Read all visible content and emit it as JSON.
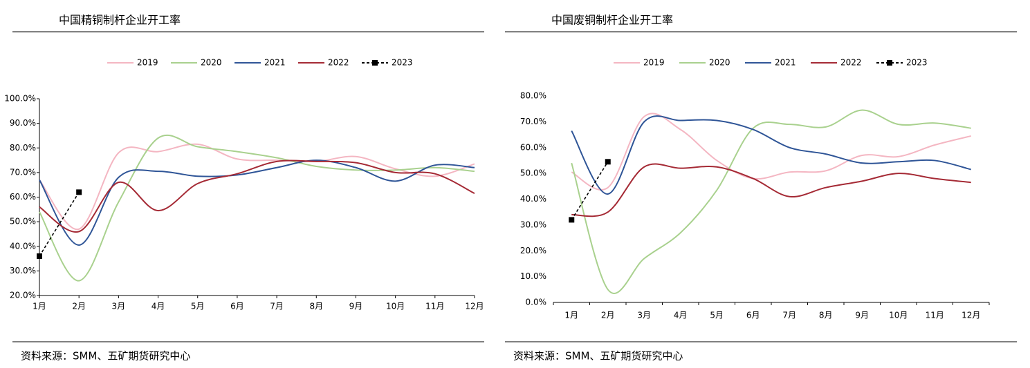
{
  "chart_data": [
    {
      "type": "line",
      "title": "中国精铜制杆企业开工率",
      "source": "资料来源：SMM、五矿期货研究中心",
      "categories": [
        "1月",
        "2月",
        "3月",
        "4月",
        "5月",
        "6月",
        "7月",
        "8月",
        "9月",
        "10月",
        "11月",
        "12月"
      ],
      "ylim": [
        20,
        100
      ],
      "yticks": [
        {
          "value": 20,
          "label": "20.0%"
        },
        {
          "value": 30,
          "label": "30.0%"
        },
        {
          "value": 40,
          "label": "40.0%"
        },
        {
          "value": 50,
          "label": "50.0%"
        },
        {
          "value": 60,
          "label": "60.0%"
        },
        {
          "value": 70,
          "label": "70.0%"
        },
        {
          "value": 80,
          "label": "80.0%"
        },
        {
          "value": 90,
          "label": "90.0%"
        },
        {
          "value": 100,
          "label": "100.0%"
        }
      ],
      "legend": "top",
      "series": [
        {
          "name": "2019",
          "color": "#f4b6c2",
          "values": [
            67,
            47,
            78,
            78.5,
            81.5,
            75.5,
            75,
            74.5,
            76.5,
            71.5,
            68.5,
            73.5
          ]
        },
        {
          "name": "2020",
          "color": "#a9d18e",
          "values": [
            54,
            26,
            58,
            84,
            80.5,
            78.5,
            76,
            72.5,
            71,
            71,
            72,
            70.5
          ]
        },
        {
          "name": "2021",
          "color": "#2f5597",
          "values": [
            67,
            40.5,
            68,
            70.5,
            68.5,
            69,
            72,
            75,
            72,
            66.5,
            73,
            72
          ]
        },
        {
          "name": "2022",
          "color": "#a52a35",
          "values": [
            56,
            46,
            66,
            54.5,
            65.5,
            69.5,
            74.5,
            74.5,
            74,
            70,
            69.5,
            61.5
          ]
        },
        {
          "name": "2023",
          "color": "#000000",
          "values": [
            36,
            62,
            null,
            null,
            null,
            null,
            null,
            null,
            null,
            null,
            null,
            null
          ]
        }
      ]
    },
    {
      "type": "line",
      "title": "中国废铜制杆企业开工率",
      "source": "资料来源：SMM、五矿期货研究中心",
      "categories": [
        "1月",
        "2月",
        "3月",
        "4月",
        "5月",
        "6月",
        "7月",
        "8月",
        "9月",
        "10月",
        "11月",
        "12月"
      ],
      "ylim": [
        0,
        80
      ],
      "yticks": [
        {
          "value": 0,
          "label": "0.0%"
        },
        {
          "value": 10,
          "label": "10.0%"
        },
        {
          "value": 20,
          "label": "20.0%"
        },
        {
          "value": 30,
          "label": "30.0%"
        },
        {
          "value": 40,
          "label": "40.0%"
        },
        {
          "value": 50,
          "label": "50.0%"
        },
        {
          "value": 60,
          "label": "60.0%"
        },
        {
          "value": 70,
          "label": "70.0%"
        },
        {
          "value": 80,
          "label": "80.0%"
        }
      ],
      "legend": "top",
      "series": [
        {
          "name": "2019",
          "color": "#f4b6c2",
          "values": [
            50.5,
            44.5,
            72,
            67,
            55,
            48,
            50.5,
            51,
            57,
            56.5,
            61,
            64.5
          ]
        },
        {
          "name": "2020",
          "color": "#a9d18e",
          "values": [
            54,
            5,
            17,
            27,
            43.5,
            67.5,
            69,
            68,
            74.5,
            69,
            69.5,
            67.5
          ]
        },
        {
          "name": "2021",
          "color": "#2f5597",
          "values": [
            66.5,
            42,
            70,
            70.5,
            70.5,
            67,
            60,
            57.5,
            54,
            54.5,
            55,
            51.5
          ]
        },
        {
          "name": "2022",
          "color": "#a52a35",
          "values": [
            34,
            35,
            52.5,
            52,
            52.5,
            48,
            41,
            44.5,
            47,
            50,
            48,
            46.5
          ]
        },
        {
          "name": "2023",
          "color": "#000000",
          "values": [
            32,
            54.5,
            null,
            null,
            null,
            null,
            null,
            null,
            null,
            null,
            null,
            null
          ]
        }
      ]
    }
  ]
}
